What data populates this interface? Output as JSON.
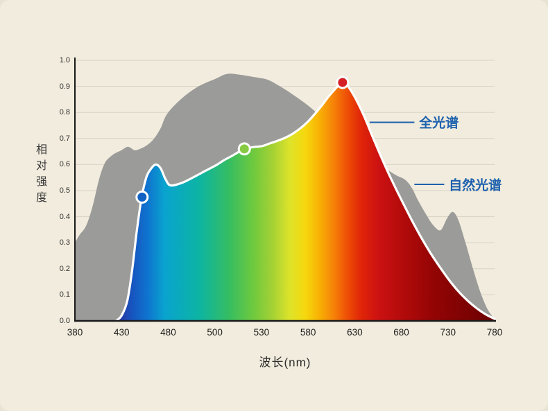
{
  "page": {
    "background": "#f1ecdd"
  },
  "chart_data": {
    "type": "area",
    "title": "",
    "xlabel": "波长(nm)",
    "ylabel": "相对强度",
    "x_ticks": [
      380,
      430,
      480,
      500,
      530,
      580,
      630,
      680,
      730,
      780
    ],
    "y_ticks": [
      "0.0",
      "0.1",
      "0.2",
      "0.3",
      "0.4",
      "0.5",
      "0.6",
      "0.7",
      "0.8",
      "0.9",
      "1.0"
    ],
    "ylim": [
      0,
      1.0
    ],
    "grid": true,
    "legend_position": "right-inline",
    "series": [
      {
        "name": "自然光谱",
        "type": "area",
        "color": "#9b9b99",
        "points": [
          [
            380,
            0.3
          ],
          [
            385,
            0.33
          ],
          [
            392,
            0.365
          ],
          [
            399,
            0.44
          ],
          [
            406,
            0.545
          ],
          [
            412,
            0.605
          ],
          [
            418,
            0.63
          ],
          [
            424,
            0.645
          ],
          [
            430,
            0.655
          ],
          [
            437,
            0.668
          ],
          [
            444,
            0.655
          ],
          [
            451,
            0.662
          ],
          [
            458,
            0.676
          ],
          [
            465,
            0.7
          ],
          [
            472,
            0.74
          ],
          [
            479,
            0.795
          ],
          [
            486,
            0.855
          ],
          [
            493,
            0.9
          ],
          [
            500,
            0.928
          ],
          [
            508,
            0.948
          ],
          [
            516,
            0.945
          ],
          [
            526,
            0.935
          ],
          [
            537,
            0.925
          ],
          [
            549,
            0.902
          ],
          [
            561,
            0.875
          ],
          [
            573,
            0.845
          ],
          [
            585,
            0.812
          ],
          [
            597,
            0.772
          ],
          [
            611,
            0.726
          ],
          [
            625,
            0.678
          ],
          [
            639,
            0.638
          ],
          [
            652,
            0.608
          ],
          [
            664,
            0.582
          ],
          [
            675,
            0.558
          ],
          [
            684,
            0.542
          ],
          [
            691,
            0.512
          ],
          [
            698,
            0.462
          ],
          [
            706,
            0.412
          ],
          [
            714,
            0.368
          ],
          [
            722,
            0.348
          ],
          [
            729,
            0.393
          ],
          [
            735,
            0.418
          ],
          [
            741,
            0.388
          ],
          [
            749,
            0.298
          ],
          [
            757,
            0.198
          ],
          [
            765,
            0.108
          ],
          [
            772,
            0.048
          ],
          [
            778,
            0.015
          ],
          [
            780,
            0.006
          ]
        ]
      },
      {
        "name": "全光谱",
        "type": "area",
        "fill": "spectrum-gradient",
        "outline": "#ffffff",
        "points": [
          [
            424,
            0.0
          ],
          [
            430,
            0.02
          ],
          [
            436,
            0.075
          ],
          [
            441,
            0.185
          ],
          [
            446,
            0.335
          ],
          [
            450,
            0.44
          ],
          [
            453,
            0.5
          ],
          [
            457,
            0.555
          ],
          [
            462,
            0.586
          ],
          [
            467,
            0.6
          ],
          [
            472,
            0.585
          ],
          [
            477,
            0.545
          ],
          [
            481,
            0.52
          ],
          [
            486,
            0.53
          ],
          [
            491,
            0.552
          ],
          [
            496,
            0.576
          ],
          [
            501,
            0.598
          ],
          [
            506,
            0.617
          ],
          [
            511,
            0.633
          ],
          [
            515,
            0.647
          ],
          [
            519,
            0.66
          ],
          [
            525,
            0.667
          ],
          [
            531,
            0.671
          ],
          [
            539,
            0.681
          ],
          [
            547,
            0.691
          ],
          [
            555,
            0.702
          ],
          [
            563,
            0.717
          ],
          [
            571,
            0.737
          ],
          [
            579,
            0.762
          ],
          [
            587,
            0.793
          ],
          [
            595,
            0.828
          ],
          [
            602,
            0.861
          ],
          [
            608,
            0.886
          ],
          [
            613,
            0.905
          ],
          [
            617,
            0.915
          ],
          [
            622,
            0.904
          ],
          [
            628,
            0.872
          ],
          [
            634,
            0.832
          ],
          [
            641,
            0.778
          ],
          [
            649,
            0.708
          ],
          [
            657,
            0.641
          ],
          [
            665,
            0.576
          ],
          [
            673,
            0.516
          ],
          [
            681,
            0.458
          ],
          [
            691,
            0.388
          ],
          [
            701,
            0.322
          ],
          [
            711,
            0.262
          ],
          [
            721,
            0.208
          ],
          [
            731,
            0.158
          ],
          [
            741,
            0.114
          ],
          [
            751,
            0.078
          ],
          [
            761,
            0.048
          ],
          [
            771,
            0.024
          ],
          [
            780,
            0.008
          ]
        ]
      }
    ],
    "gradient_stops": [
      [
        424,
        "#2b2f9e"
      ],
      [
        442,
        "#1656c0"
      ],
      [
        458,
        "#0f74cf"
      ],
      [
        476,
        "#09a3cf"
      ],
      [
        493,
        "#0cb4a4"
      ],
      [
        509,
        "#35bd62"
      ],
      [
        525,
        "#6fc93e"
      ],
      [
        543,
        "#a7d234"
      ],
      [
        560,
        "#dce32a"
      ],
      [
        577,
        "#f6d80e"
      ],
      [
        593,
        "#f8ae04"
      ],
      [
        608,
        "#f68008"
      ],
      [
        622,
        "#ee4f06"
      ],
      [
        637,
        "#e02508"
      ],
      [
        655,
        "#cd1212"
      ],
      [
        680,
        "#b40b0b"
      ],
      [
        715,
        "#930404"
      ],
      [
        780,
        "#6b0101"
      ]
    ],
    "markers": [
      {
        "nm": 452,
        "value": 0.475,
        "color": "#1262c4"
      },
      {
        "nm": 519,
        "value": 0.66,
        "color": "#86cb43"
      },
      {
        "nm": 617,
        "value": 0.915,
        "color": "#d41f26"
      }
    ],
    "annotations": [
      {
        "label": "全光谱",
        "color": "#1e61ae",
        "line_from": [
          646,
          0.762
        ],
        "line_to": [
          694,
          0.762
        ],
        "text_at": [
          699,
          0.762
        ]
      },
      {
        "label": "自然光谱",
        "color": "#1e61ae",
        "line_from": [
          694,
          0.524
        ],
        "line_to": [
          726,
          0.524
        ],
        "text_at": [
          731,
          0.524
        ]
      }
    ],
    "grid_color": "#d8d3c5",
    "axis_color": "#1a1a1a"
  }
}
